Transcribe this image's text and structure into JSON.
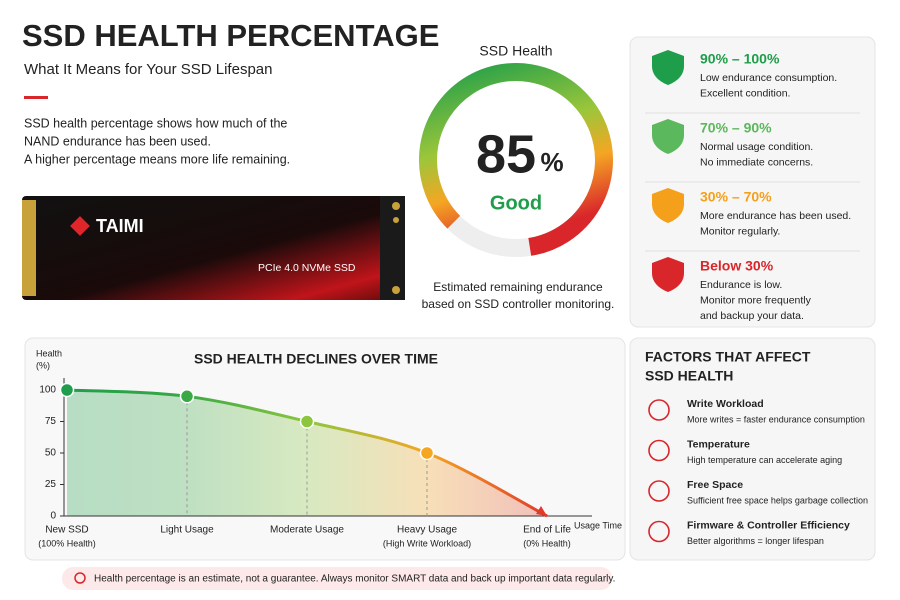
{
  "header": {
    "title": "SSD HEALTH PERCENTAGE",
    "subtitle": "What It Means for Your SSD Lifespan",
    "description": [
      "SSD health percentage shows how much of the",
      "NAND endurance has been used.",
      "A higher percentage means more life remaining."
    ]
  },
  "product": {
    "brand": "TAIMI",
    "label": "PCIe 4.0 NVMe SSD"
  },
  "gauge": {
    "title": "SSD Health",
    "value": 85,
    "unit": "%",
    "max": 100,
    "status": "Good",
    "caption": [
      "Estimated remaining endurance",
      "based on SSD controller monitoring."
    ]
  },
  "ranges": [
    {
      "title": "90% – 100%",
      "color": "#1e9e4a",
      "lines": [
        "Low endurance consumption.",
        "Excellent condition."
      ]
    },
    {
      "title": "70% – 90%",
      "color": "#5cb85c",
      "lines": [
        "Normal usage condition.",
        "No immediate concerns."
      ]
    },
    {
      "title": "30% – 70%",
      "color": "#f5a01a",
      "lines": [
        "More endurance has been used.",
        "Monitor regularly."
      ]
    },
    {
      "title": "Below 30%",
      "color": "#d9262b",
      "lines": [
        "Endurance is low.",
        "Monitor more frequently",
        "and backup your data."
      ]
    }
  ],
  "chart_data": {
    "type": "line",
    "title": "SSD HEALTH DECLINES OVER TIME",
    "ylabel": [
      "Health",
      "(%)"
    ],
    "xlabel": "Usage Time",
    "categories": [
      "New SSD",
      "Light Usage",
      "Moderate Usage",
      "Heavy Usage",
      "End of Life"
    ],
    "category_notes": [
      "(100% Health)",
      null,
      null,
      "(High Write Workload)",
      "(0% Health)"
    ],
    "values": [
      100,
      95,
      75,
      50,
      0
    ],
    "colors": [
      "#1e9e4a",
      "#3aa845",
      "#8cc63f",
      "#f5a623",
      "#e03a2a"
    ],
    "ylim": [
      0,
      100
    ],
    "yticks": [
      0,
      25,
      50,
      75,
      100
    ]
  },
  "factors": {
    "title": [
      "FACTORS THAT AFFECT",
      "SSD HEALTH"
    ],
    "items": [
      {
        "title": "Write Workload",
        "text": "More writes = faster endurance consumption"
      },
      {
        "title": "Temperature",
        "text": "High temperature can accelerate aging"
      },
      {
        "title": "Free Space",
        "text": "Sufficient free space helps garbage collection"
      },
      {
        "title": "Firmware & Controller Efficiency",
        "text": "Better algorithms = longer lifespan"
      }
    ]
  },
  "note": "Health percentage is an estimate, not a guarantee. Always monitor SMART data and back up important data regularly."
}
